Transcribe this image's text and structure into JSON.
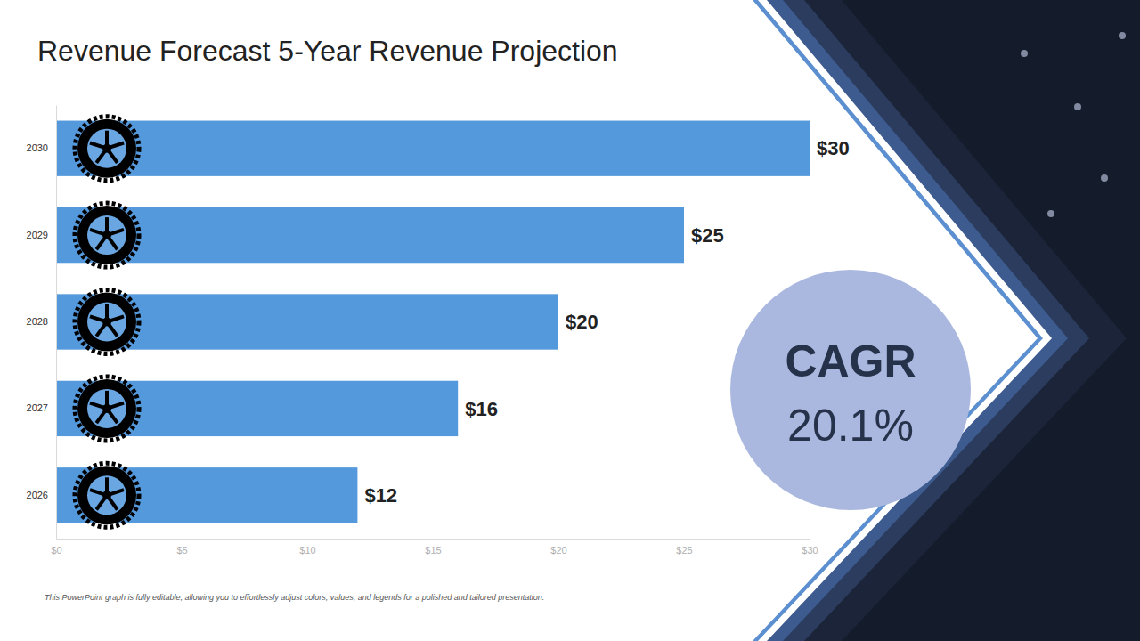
{
  "chart_data": {
    "type": "bar",
    "title": "Revenue Forecast 5-Year Revenue Projection",
    "orientation": "horizontal",
    "categories": [
      "2026",
      "2027",
      "2028",
      "2029",
      "2030"
    ],
    "values": [
      12,
      16,
      20,
      25,
      30
    ],
    "value_labels": [
      "$12",
      "$16",
      "$20",
      "$25",
      "$30"
    ],
    "color": "#5499dc",
    "data_labels": true,
    "grid": false,
    "xlim": [
      0,
      30
    ],
    "xticks": [
      {
        "value": 0,
        "label": "$0"
      },
      {
        "value": 5,
        "label": "$5"
      },
      {
        "value": 10,
        "label": "$10"
      },
      {
        "value": 15,
        "label": "$15"
      },
      {
        "value": 20,
        "label": "$20"
      },
      {
        "value": 25,
        "label": "$25"
      },
      {
        "value": 30,
        "label": "$30"
      }
    ],
    "annotations": [
      "CAGR",
      "20.1%"
    ],
    "footnote": "This PowerPoint graph is fully editable, allowing you to effortlessly adjust colors, values, and legends for a polished and tailored presentation."
  }
}
